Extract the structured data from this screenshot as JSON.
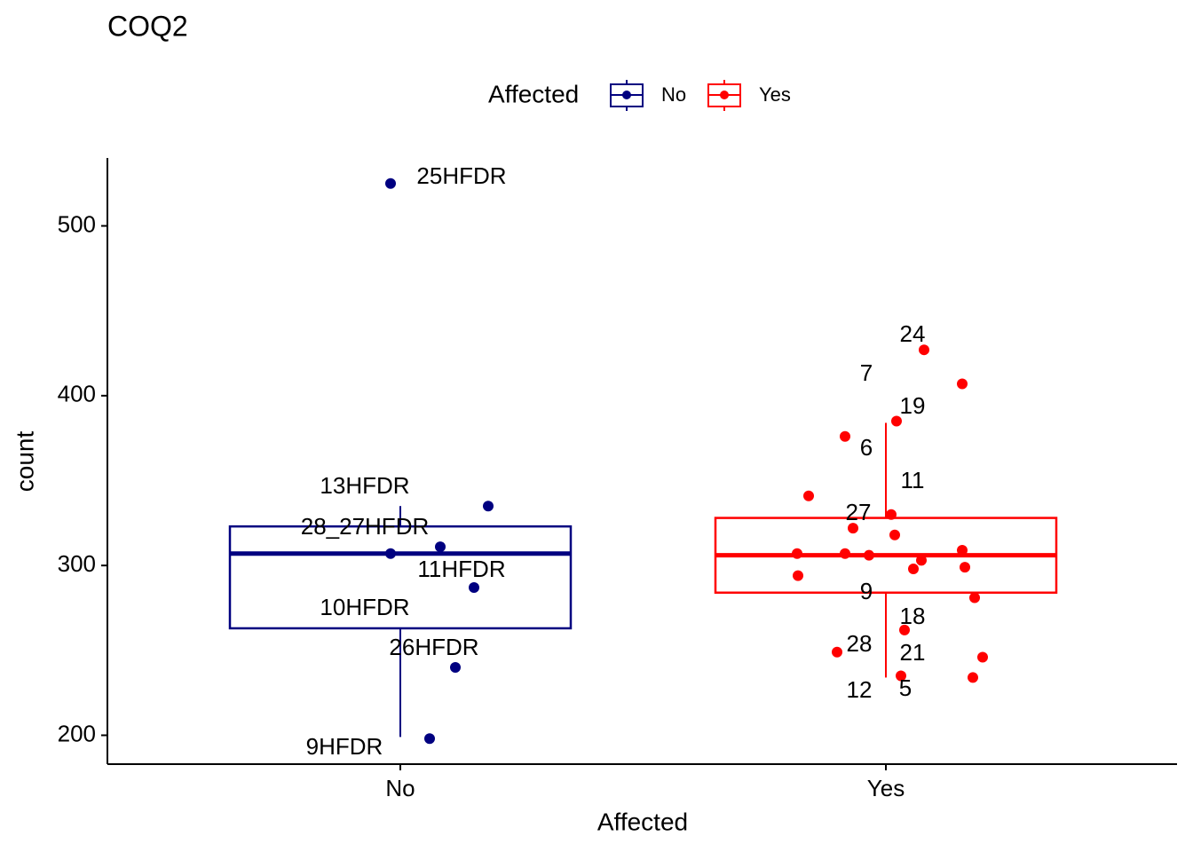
{
  "chart_data": {
    "type": "box",
    "title": "COQ2",
    "x_label": "Affected",
    "y_label": "count",
    "legend_title": "Affected",
    "legend_position": "top",
    "categories": [
      "No",
      "Yes"
    ],
    "ylim": [
      183,
      540
    ],
    "yticks": [
      200,
      300,
      400,
      500
    ],
    "series": [
      {
        "name": "No",
        "color": "#000080",
        "box": {
          "lower": 199,
          "q1": 263,
          "median": 307,
          "q3": 323,
          "upper": 335
        },
        "points": {
          "values": [
            525,
            335,
            311,
            307,
            287,
            240,
            198
          ],
          "labels": [
            "25HFDR",
            "13HFDR",
            "28_27HFDR",
            "10HFDR",
            "11HFDR",
            "26HFDR",
            "9HFDR"
          ]
        }
      },
      {
        "name": "Yes",
        "color": "#ff0000",
        "box": {
          "lower": 234,
          "q1": 284,
          "median": 306,
          "q3": 328,
          "upper": 384
        },
        "points": {
          "values": [
            427,
            407,
            385,
            376,
            341,
            330,
            322,
            318,
            307,
            307,
            306,
            309,
            303,
            298,
            299,
            294,
            281,
            262,
            249,
            246,
            235,
            234
          ],
          "labels": [
            "24",
            "7",
            "19",
            "6",
            "11",
            "27",
            null,
            null,
            null,
            null,
            null,
            null,
            null,
            null,
            null,
            null,
            "9",
            "18",
            "28",
            "21",
            "5",
            "12"
          ]
        }
      }
    ]
  }
}
